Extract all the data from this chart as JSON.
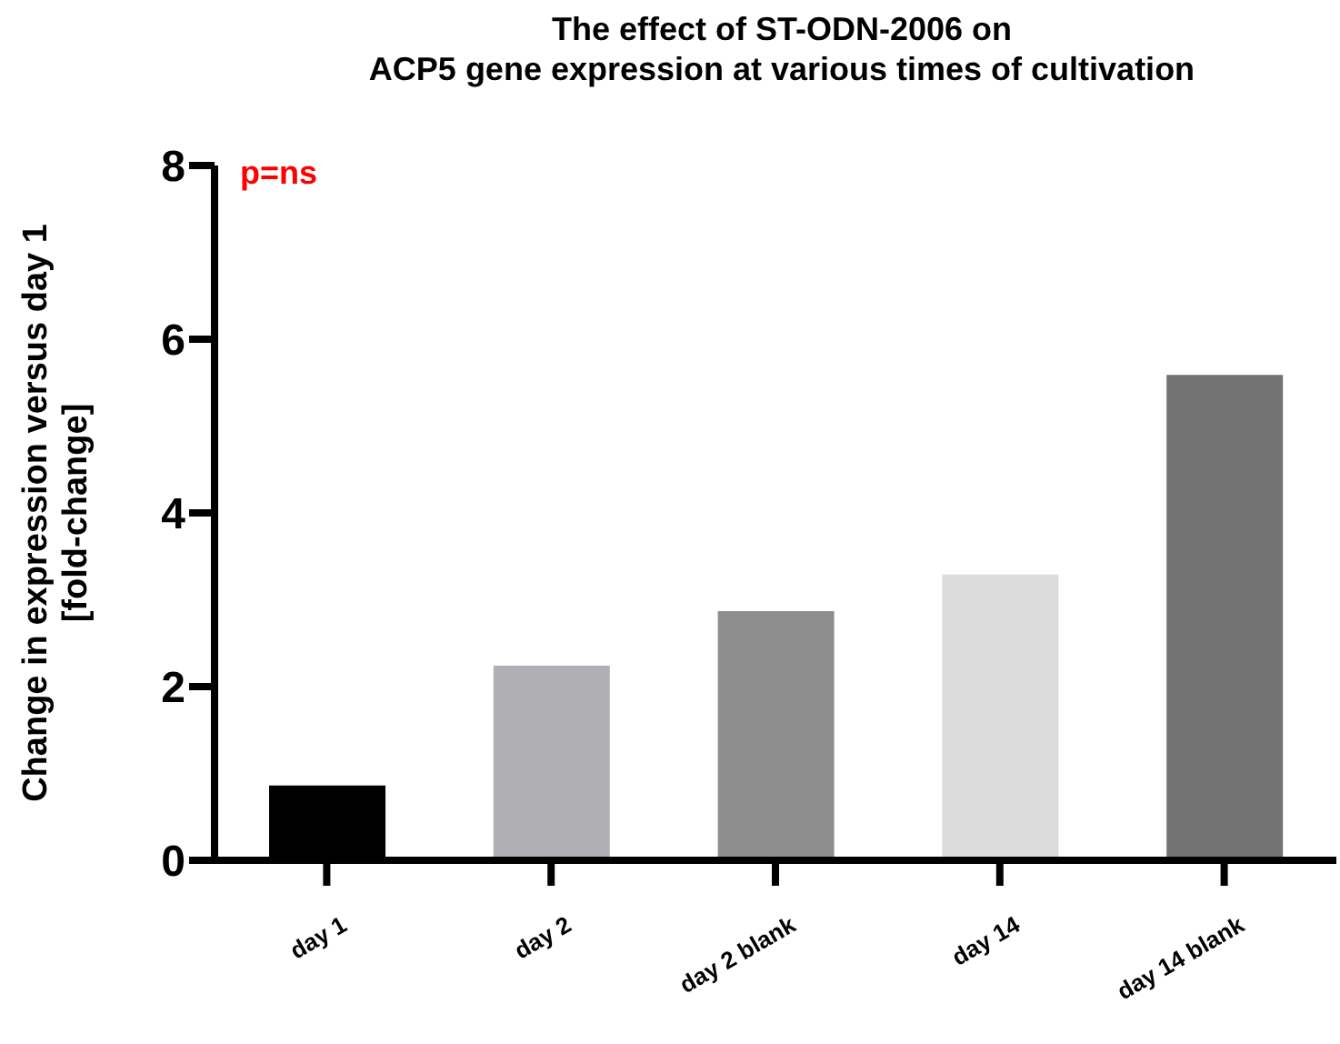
{
  "chart_data": {
    "type": "bar",
    "title": "The effect of ST-ODN-2006 on\nACP5 gene expression at various times of cultivation",
    "ylabel": "Change in expression versus day 1\n[fold-change]",
    "categories": [
      "day 1",
      "day 2",
      "day 2 blank",
      "day 14",
      "day 14 blank"
    ],
    "values": [
      0.86,
      2.24,
      2.87,
      3.29,
      5.59
    ],
    "colors": [
      "#000000",
      "#b0afb4",
      "#8e8e8e",
      "#dcdcdc",
      "#737373"
    ],
    "ylim": [
      0,
      8
    ],
    "yticks": [
      0,
      2,
      4,
      6,
      8
    ],
    "annotations": [
      "p=ns"
    ]
  }
}
